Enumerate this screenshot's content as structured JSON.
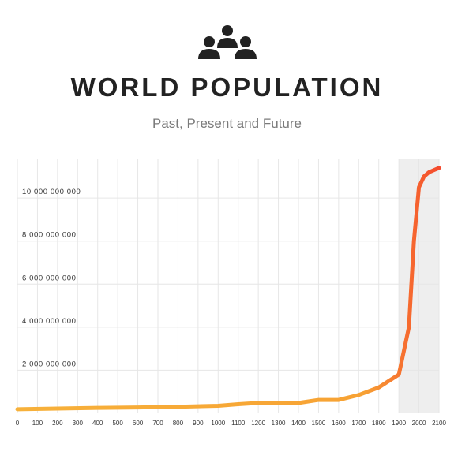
{
  "header": {
    "icon": "people-group-icon",
    "title": "WORLD POPULATION",
    "subtitle": "Past, Present and Future"
  },
  "chart_data": {
    "type": "line",
    "title": "WORLD POPULATION",
    "subtitle": "Past, Present and Future",
    "xlabel": "",
    "ylabel": "",
    "xlim": [
      0,
      2100
    ],
    "ylim": [
      0,
      11800000000
    ],
    "grid": true,
    "projection_shading": [
      1900,
      2100
    ],
    "colors": {
      "line_start": "#f7b13a",
      "line_end": "#f44a2e",
      "grid": "#e6e6e6",
      "shade": "#eeeeee"
    },
    "x_ticks": [
      0,
      100,
      200,
      300,
      400,
      500,
      600,
      700,
      800,
      900,
      1000,
      1100,
      1200,
      1300,
      1400,
      1500,
      1600,
      1700,
      1800,
      1900,
      2000,
      2100
    ],
    "y_ticks": [
      {
        "value": 2000000000,
        "label": "2 000 000 000"
      },
      {
        "value": 4000000000,
        "label": "4 000 000 000"
      },
      {
        "value": 6000000000,
        "label": "6 000 000 000"
      },
      {
        "value": 8000000000,
        "label": "8 000 000 000"
      },
      {
        "value": 10000000000,
        "label": "10 000 000 000"
      }
    ],
    "series": [
      {
        "x": [
          0,
          200,
          400,
          600,
          800,
          1000,
          1100,
          1200,
          1300,
          1400,
          1500,
          1600,
          1700,
          1800,
          1900,
          1950,
          1975,
          2000,
          2025,
          2050,
          2075,
          2100
        ],
        "values": [
          190000000,
          220000000,
          250000000,
          270000000,
          300000000,
          350000000,
          420000000,
          480000000,
          480000000,
          480000000,
          620000000,
          620000000,
          850000000,
          1200000000,
          1800000000,
          4000000000,
          8000000000,
          10500000000,
          11000000000,
          11200000000,
          11300000000,
          11400000000
        ]
      }
    ]
  }
}
